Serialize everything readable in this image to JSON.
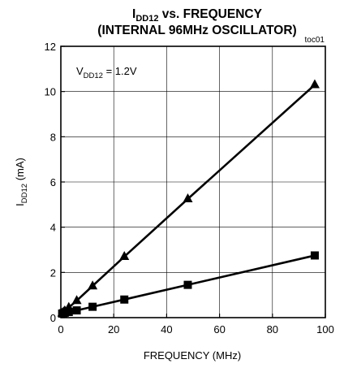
{
  "chart_data": {
    "type": "line",
    "title": {
      "line1_main": "I",
      "line1_sub": "DD12",
      "line1_rest": " vs. FREQUENCY",
      "line2": "(INTERNAL 96MHz OSCILLATOR)"
    },
    "tag": "toc01",
    "xlabel": "FREQUENCY (MHz)",
    "ylabel": {
      "main": "I",
      "sub": "DD12",
      "rest": " (mA)"
    },
    "annotation": {
      "main": "V",
      "sub": "DD12",
      "rest": " = 1.2V"
    },
    "xlim": [
      0,
      100
    ],
    "ylim": [
      0,
      12
    ],
    "xticks": [
      "0",
      "20",
      "40",
      "60",
      "80",
      "100"
    ],
    "yticks": [
      "0",
      "2",
      "4",
      "6",
      "8",
      "10",
      "12"
    ],
    "grid": true,
    "series": [
      {
        "marker": "triangle",
        "x": [
          0.5,
          1,
          1.5,
          3,
          6,
          12,
          24,
          48,
          96
        ],
        "y": [
          0.2,
          0.25,
          0.3,
          0.45,
          0.75,
          1.4,
          2.7,
          5.25,
          10.3
        ]
      },
      {
        "marker": "square",
        "x": [
          0.5,
          1,
          1.5,
          3,
          6,
          12,
          24,
          48,
          96
        ],
        "y": [
          0.18,
          0.2,
          0.22,
          0.25,
          0.32,
          0.48,
          0.8,
          1.45,
          2.75
        ]
      }
    ]
  }
}
